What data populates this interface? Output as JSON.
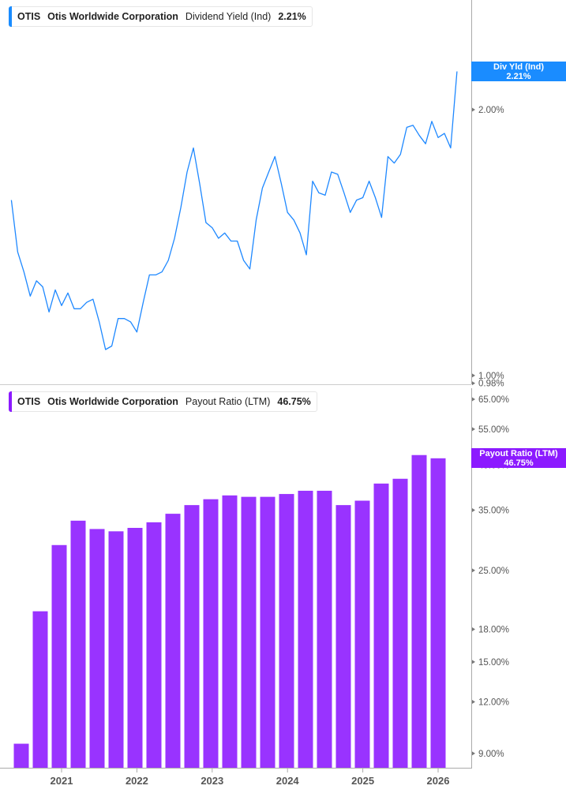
{
  "colors": {
    "yield_line": "#1e88ff",
    "bars": "#9933ff",
    "yield_flag": "#1a8cff",
    "payout_flag": "#8c1aff",
    "axis": "#aaaaaa"
  },
  "top_legend": {
    "ticker": "OTIS",
    "company": "Otis Worldwide Corporation",
    "metric": "Dividend Yield (Ind)",
    "value": "2.21%"
  },
  "bottom_legend": {
    "ticker": "OTIS",
    "company": "Otis Worldwide Corporation",
    "metric": "Payout Ratio (LTM)",
    "value": "46.75%"
  },
  "top_flag": {
    "label": "Div Yld (Ind)",
    "value": "2.21%"
  },
  "bottom_flag": {
    "label": "Payout Ratio (LTM)",
    "value": "46.75%"
  },
  "chart_data": [
    {
      "type": "line",
      "scale": "log",
      "ylim": [
        0.98,
        2.5
      ],
      "y_ticks": [
        "2.00%",
        "1.00%",
        "0.98%"
      ],
      "y_tick_values": [
        2.0,
        1.0,
        0.98
      ],
      "series": [
        {
          "name": "Dividend Yield (Ind)",
          "x": [
            "2020-05",
            "2020-06",
            "2020-07",
            "2020-08",
            "2020-09",
            "2020-10",
            "2020-11",
            "2020-12",
            "2021-01",
            "2021-02",
            "2021-03",
            "2021-04",
            "2021-05",
            "2021-06",
            "2021-07",
            "2021-08",
            "2021-09",
            "2021-10",
            "2021-11",
            "2021-12",
            "2022-01",
            "2022-02",
            "2022-03",
            "2022-04",
            "2022-05",
            "2022-06",
            "2022-07",
            "2022-08",
            "2022-09",
            "2022-10",
            "2022-11",
            "2022-12",
            "2023-01",
            "2023-02",
            "2023-03",
            "2023-04",
            "2023-05",
            "2023-06",
            "2023-07",
            "2023-08",
            "2023-09",
            "2023-10",
            "2023-11",
            "2023-12",
            "2024-01",
            "2024-02",
            "2024-03",
            "2024-04",
            "2024-05",
            "2024-06",
            "2024-07",
            "2024-08",
            "2024-09",
            "2024-10",
            "2024-11",
            "2024-12",
            "2025-01",
            "2025-02",
            "2025-03",
            "2025-04",
            "2025-05",
            "2025-06",
            "2025-07",
            "2025-08",
            "2025-09",
            "2025-10",
            "2025-11",
            "2025-12",
            "2026-01",
            "2026-02",
            "2026-03",
            "2026-04"
          ],
          "values": [
            1.58,
            1.38,
            1.31,
            1.23,
            1.28,
            1.26,
            1.18,
            1.25,
            1.2,
            1.24,
            1.19,
            1.19,
            1.21,
            1.22,
            1.15,
            1.07,
            1.08,
            1.16,
            1.16,
            1.15,
            1.12,
            1.21,
            1.3,
            1.3,
            1.31,
            1.35,
            1.43,
            1.55,
            1.7,
            1.81,
            1.65,
            1.49,
            1.47,
            1.43,
            1.45,
            1.42,
            1.42,
            1.35,
            1.32,
            1.5,
            1.63,
            1.7,
            1.77,
            1.65,
            1.53,
            1.5,
            1.45,
            1.37,
            1.66,
            1.61,
            1.6,
            1.7,
            1.69,
            1.61,
            1.53,
            1.58,
            1.59,
            1.66,
            1.59,
            1.51,
            1.77,
            1.74,
            1.78,
            1.91,
            1.92,
            1.87,
            1.83,
            1.94,
            1.86,
            1.88,
            1.81,
            2.21
          ]
        }
      ]
    },
    {
      "type": "bar",
      "scale": "log",
      "ylim": [
        8.5,
        70
      ],
      "y_ticks": [
        "65.00%",
        "55.00%",
        "45.00%",
        "35.00%",
        "25.00%",
        "18.00%",
        "15.00%",
        "12.00%",
        "9.00%"
      ],
      "y_tick_values": [
        65,
        55,
        45,
        35,
        25,
        18,
        15,
        12,
        9
      ],
      "x_ticks": [
        "2021",
        "2022",
        "2023",
        "2024",
        "2025",
        "2026"
      ],
      "categories": [
        "2020-Q2",
        "2020-Q3",
        "2020-Q4",
        "2021-Q1",
        "2021-Q2",
        "2021-Q3",
        "2021-Q4",
        "2022-Q1",
        "2022-Q2",
        "2022-Q3",
        "2022-Q4",
        "2023-Q1",
        "2023-Q2",
        "2023-Q3",
        "2023-Q4",
        "2024-Q1",
        "2024-Q2",
        "2024-Q3",
        "2024-Q4",
        "2025-Q1",
        "2025-Q2",
        "2025-Q3",
        "2025-Q4"
      ],
      "series": [
        {
          "name": "Payout Ratio (LTM)",
          "values": [
            9.5,
            19.9,
            28.8,
            33.0,
            31.5,
            31.1,
            31.7,
            32.7,
            34.3,
            36.0,
            37.2,
            38.0,
            37.7,
            37.7,
            38.3,
            39.0,
            39.0,
            36.0,
            36.9,
            40.6,
            41.7,
            47.6,
            46.75
          ]
        }
      ]
    }
  ]
}
